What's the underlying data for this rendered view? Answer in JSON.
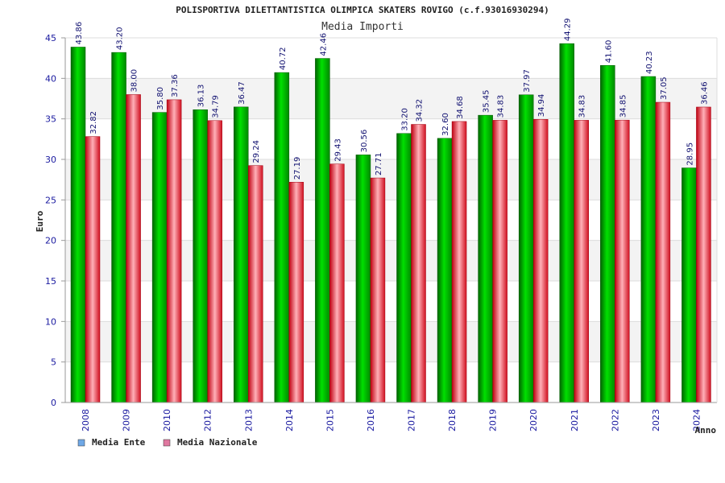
{
  "chart_data": {
    "type": "bar",
    "title": "POLISPORTIVA DILETTANTISTICA OLIMPICA SKATERS ROVIGO (c.f.93016930294)",
    "subtitle": "Media Importi",
    "xlabel": "Anno",
    "ylabel": "Euro",
    "ylim": [
      0,
      45
    ],
    "yticks": [
      0,
      5,
      10,
      15,
      20,
      25,
      30,
      35,
      40,
      45
    ],
    "grid": true,
    "legend_position": "bottom-left",
    "categories": [
      "2008",
      "2009",
      "2010",
      "2012",
      "2013",
      "2014",
      "2015",
      "2016",
      "2017",
      "2018",
      "2019",
      "2020",
      "2021",
      "2022",
      "2023",
      "2024"
    ],
    "series": [
      {
        "name": "Media Ente",
        "color": "#00aa00",
        "legend_color": "#6fa8e6",
        "values": [
          43.86,
          43.2,
          35.8,
          36.13,
          36.47,
          40.72,
          42.46,
          30.56,
          33.2,
          32.6,
          35.45,
          37.97,
          44.29,
          41.6,
          40.23,
          28.95
        ],
        "labels": [
          "43.86",
          "43.20",
          "35.80",
          "36.13",
          "36.47",
          "40.72",
          "42.46",
          "30.56",
          "33.20",
          "32.60",
          "35.45",
          "37.97",
          "44.29",
          "41.60",
          "40.23",
          "28.95"
        ]
      },
      {
        "name": "Media Nazionale",
        "color": "#e8202a",
        "legend_color": "#e078a0",
        "values": [
          32.82,
          38.0,
          37.36,
          34.79,
          29.24,
          27.19,
          29.43,
          27.71,
          34.32,
          34.68,
          34.83,
          34.94,
          34.83,
          34.85,
          37.05,
          36.46
        ],
        "labels": [
          "32.82",
          "38.00",
          "37.36",
          "34.79",
          "29.24",
          "27.19",
          "29.43",
          "27.71",
          "34.32",
          "34.68",
          "34.83",
          "34.94",
          "34.83",
          "34.85",
          "37.05",
          "36.46"
        ]
      }
    ]
  }
}
